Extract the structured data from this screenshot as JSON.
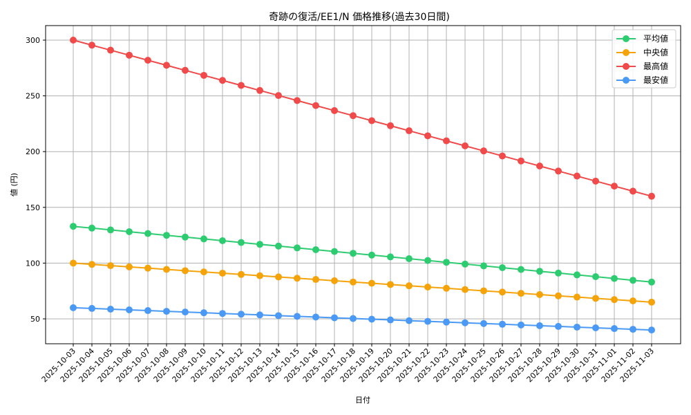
{
  "chart_data": {
    "type": "line",
    "title": "奇跡の復活/EE1/N 価格推移(過去30日間)",
    "xlabel": "日付",
    "ylabel": "値 (円)",
    "ylim": [
      27,
      313
    ],
    "yticks": [
      50,
      100,
      150,
      200,
      250,
      300
    ],
    "grid": true,
    "legend_position": "upper right",
    "x": [
      "2025-10-03",
      "2025-10-04",
      "2025-10-05",
      "2025-10-06",
      "2025-10-07",
      "2025-10-08",
      "2025-10-09",
      "2025-10-10",
      "2025-10-11",
      "2025-10-12",
      "2025-10-13",
      "2025-10-14",
      "2025-10-15",
      "2025-10-16",
      "2025-10-17",
      "2025-10-18",
      "2025-10-19",
      "2025-10-20",
      "2025-10-21",
      "2025-10-22",
      "2025-10-23",
      "2025-10-24",
      "2025-10-25",
      "2025-10-26",
      "2025-10-27",
      "2025-10-28",
      "2025-10-29",
      "2025-10-30",
      "2025-10-31",
      "2025-11-01",
      "2025-11-02",
      "2025-11-03"
    ],
    "series": [
      {
        "name": "平均値",
        "color": "#2ecc71",
        "start": 133,
        "end": 83
      },
      {
        "name": "中央値",
        "color": "#f5a30a",
        "start": 100,
        "end": 65
      },
      {
        "name": "最高値",
        "color": "#f04a4a",
        "start": 300,
        "end": 160
      },
      {
        "name": "最安値",
        "color": "#4a99f5",
        "start": 60,
        "end": 40
      }
    ]
  }
}
